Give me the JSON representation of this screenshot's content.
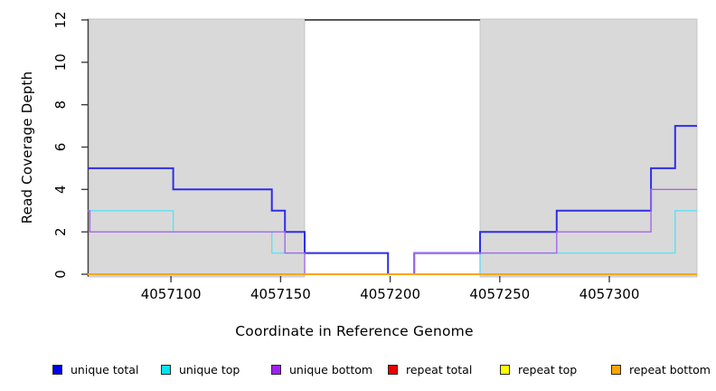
{
  "figure": {
    "ylabel": "Read Coverage Depth",
    "xlabel": "Coordinate in Reference Genome"
  },
  "chart_data": {
    "type": "line",
    "subtype": "step",
    "title": "",
    "xlabel": "Coordinate in Reference Genome",
    "ylabel": "Read Coverage Depth",
    "xlim": [
      4057062,
      4057340
    ],
    "ylim": [
      0,
      12
    ],
    "xticks": [
      4057100,
      4057150,
      4057200,
      4057250,
      4057300
    ],
    "yticks": [
      0,
      2,
      4,
      6,
      8,
      10,
      12
    ],
    "grid": false,
    "legend_position": "bottom",
    "shaded_regions": [
      {
        "name": "left-shaded-region",
        "x0": 4057062,
        "x1": 4057161,
        "color": "#d9d9d9"
      },
      {
        "name": "right-shaded-region",
        "x0": 4057241,
        "x1": 4057340,
        "color": "#d9d9d9"
      }
    ],
    "top_boundary_line": {
      "x0": 4057161,
      "x1": 4057241,
      "y": 12,
      "color": "#595959"
    },
    "series": [
      {
        "name": "repeat total",
        "color": "#ee0000",
        "steps": [
          [
            4057062,
            0
          ]
        ]
      },
      {
        "name": "repeat top",
        "color": "#ffff00",
        "steps": [
          [
            4057062,
            0
          ]
        ]
      },
      {
        "name": "unique top",
        "color": "#63dff0",
        "steps": [
          [
            4057062,
            3
          ],
          [
            4057101,
            2
          ],
          [
            4057146,
            1
          ],
          [
            4057199,
            0
          ],
          [
            4057241,
            1
          ],
          [
            4057330,
            3
          ]
        ]
      },
      {
        "name": "unique total",
        "color": "#2e2ee8",
        "steps": [
          [
            4057062,
            5
          ],
          [
            4057101,
            4
          ],
          [
            4057146,
            3
          ],
          [
            4057152,
            2
          ],
          [
            4057161,
            1
          ],
          [
            4057199,
            0
          ],
          [
            4057211,
            1
          ],
          [
            4057241,
            2
          ],
          [
            4057276,
            3
          ],
          [
            4057319,
            5
          ],
          [
            4057330,
            7
          ]
        ]
      },
      {
        "name": "unique bottom",
        "color": "#a468e6",
        "steps": [
          [
            4057062,
            3
          ],
          [
            4057063,
            2
          ],
          [
            4057152,
            1
          ],
          [
            4057161,
            0
          ],
          [
            4057211,
            1
          ],
          [
            4057276,
            2
          ],
          [
            4057319,
            4
          ]
        ]
      },
      {
        "name": "repeat bottom",
        "color": "#ffa500",
        "steps": [
          [
            4057062,
            0
          ]
        ]
      }
    ],
    "legend": [
      {
        "label": "unique total",
        "color": "#0000ee"
      },
      {
        "label": "unique top",
        "color": "#00e5ee"
      },
      {
        "label": "unique bottom",
        "color": "#a020f0"
      },
      {
        "label": "repeat total",
        "color": "#ee0000"
      },
      {
        "label": "repeat top",
        "color": "#ffff00"
      },
      {
        "label": "repeat bottom",
        "color": "#ffa500"
      }
    ]
  }
}
